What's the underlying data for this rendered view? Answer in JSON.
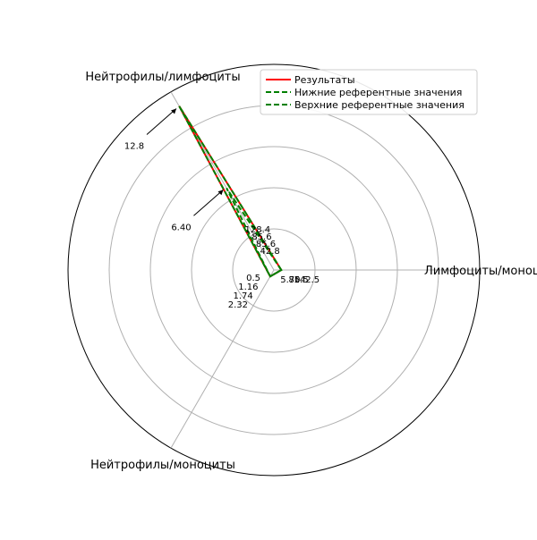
{
  "chart_data": {
    "type": "radar",
    "axes": [
      {
        "label": "Лимфоциты/моноциты",
        "label_text": "Лимфоциты/моноциты"
      },
      {
        "label": "Нейтрофилы/лимфоциты",
        "label_text": "Нейтрофилы/лимфоциты"
      },
      {
        "label": "Нейтрофилы/моноциты",
        "label_text": "Нейтрофилы/моноциты"
      }
    ],
    "grid": true,
    "legend_position": "top-right",
    "series": [
      {
        "name": "Результаты",
        "color": "#ff0000",
        "style": "solid",
        "values": [
          0.5,
          12.8,
          0.5
        ]
      },
      {
        "name": "Нижние референтные значения",
        "color": "#008000",
        "style": "dashed",
        "values": [
          0.5,
          6.4,
          0.5
        ]
      },
      {
        "name": "Верхние референтные значения",
        "color": "#008000",
        "style": "dashed",
        "values": [
          0.5,
          12.8,
          0.5
        ]
      }
    ],
    "annotations": [
      {
        "text": "12.8",
        "axis": 1,
        "r": 0.95,
        "arrow": true
      },
      {
        "text": "6.40",
        "axis": 1,
        "r": 0.48,
        "arrow": true
      },
      {
        "text": "128.4",
        "axis": 1,
        "r": 0.21
      },
      {
        "text": "85.6",
        "axis": 1,
        "r": 0.17
      },
      {
        "text": "85.6",
        "axis": 1,
        "r": 0.13
      },
      {
        "text": "42.8",
        "axis": 1,
        "r": 0.09
      },
      {
        "text": "0.5",
        "axis": 2,
        "r": 0.06
      },
      {
        "text": "1.16",
        "axis": 2,
        "r": 0.11
      },
      {
        "text": "1.74",
        "axis": 2,
        "r": 0.16
      },
      {
        "text": "2.32",
        "axis": 2,
        "r": 0.21
      },
      {
        "text": "5.70",
        "axis": 0,
        "r": 0.08
      },
      {
        "text": "85.5",
        "axis": 0,
        "r": 0.12
      },
      {
        "text": "142.5",
        "axis": 0,
        "r": 0.16
      }
    ]
  }
}
